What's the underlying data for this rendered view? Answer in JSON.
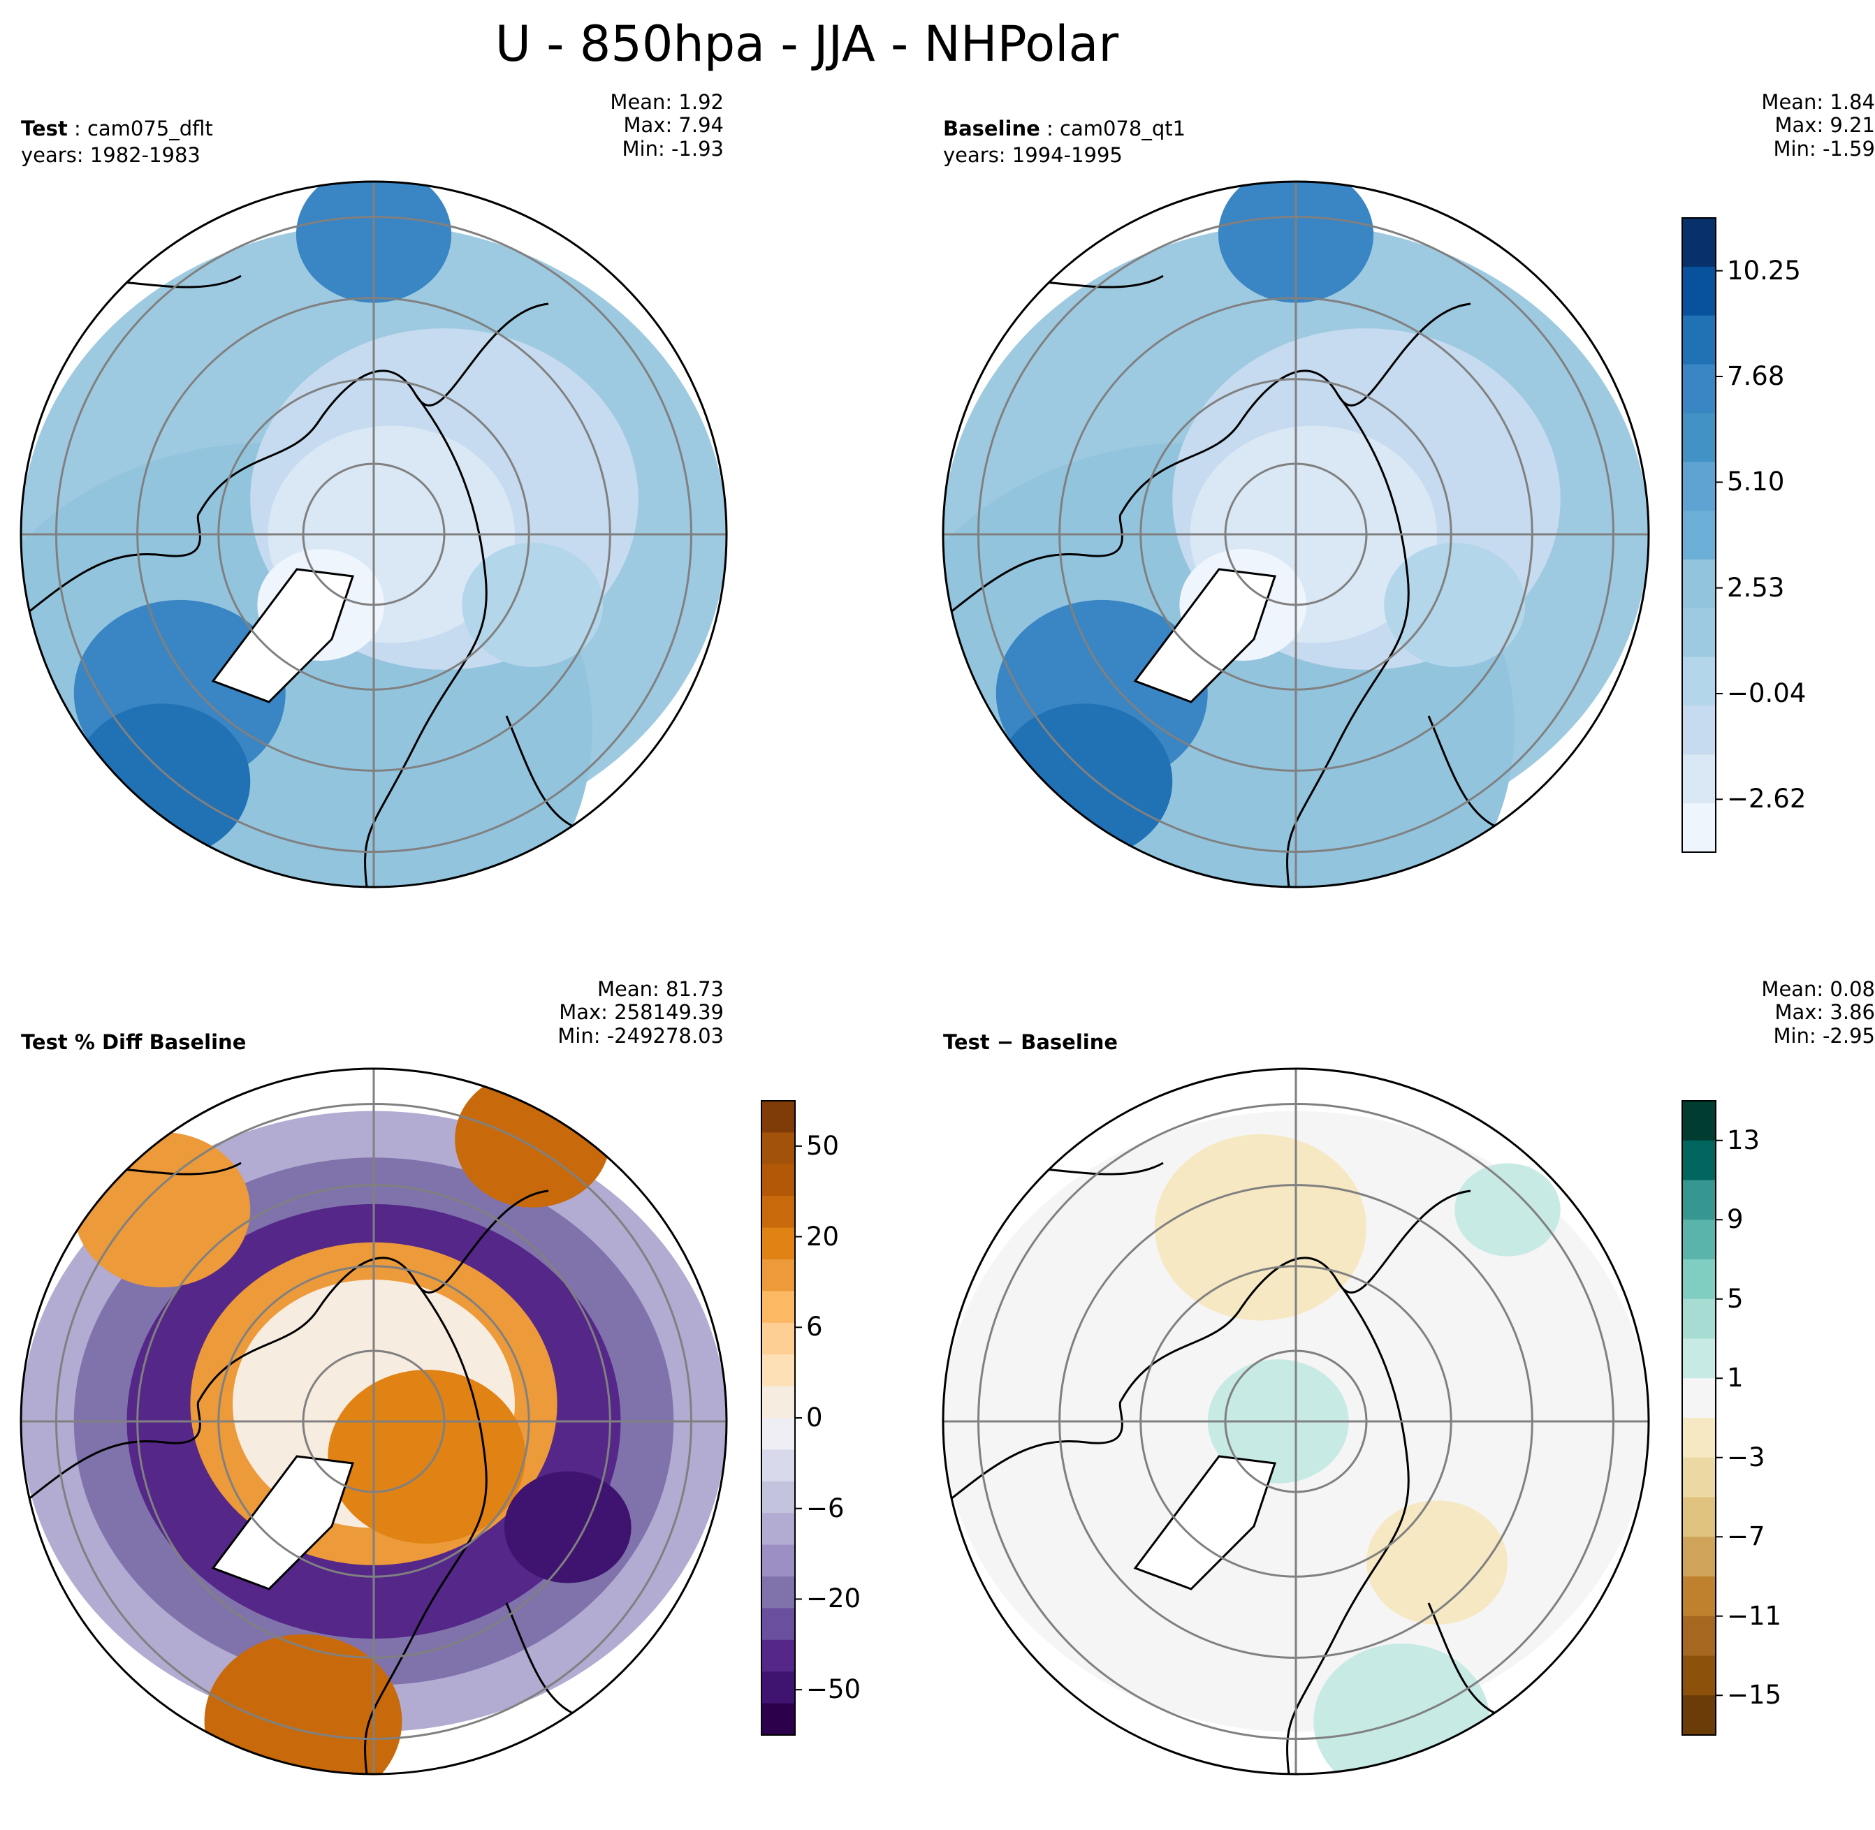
{
  "title": "U - 850hpa - JJA - NHPolar",
  "panels": [
    {
      "id": "test",
      "label_bold": "Test",
      "label_rest": " : cam075_dflt",
      "years": "years: 1982-1983",
      "stats": [
        "Mean:  1.92",
        "Max:  7.94",
        "Min: -1.93"
      ],
      "palette": "blues"
    },
    {
      "id": "baseline",
      "label_bold": "Baseline",
      "label_rest": " : cam078_qt1",
      "years": "years: 1994-1995",
      "stats": [
        "Mean:  1.84",
        "Max:  9.21",
        "Min: -1.59"
      ],
      "palette": "blues"
    },
    {
      "id": "pctdiff",
      "label_bold": "Test % Diff Baseline",
      "label_rest": "",
      "years": "",
      "stats": [
        "Mean: 81.73",
        "Max: 258149.39",
        "Min: -249278.03"
      ],
      "palette": "puor"
    },
    {
      "id": "diff",
      "label_bold": "Test − Baseline",
      "label_rest": "",
      "years": "",
      "stats": [
        "Mean:  0.08",
        "Max:  3.86",
        "Min: -2.95"
      ],
      "palette": "brbg"
    }
  ],
  "colorbars": {
    "blues": {
      "ticks": [
        "10.25",
        "7.68",
        "5.10",
        "2.53",
        "−0.04",
        "−2.62"
      ],
      "colors": [
        "#08306b",
        "#08519c",
        "#2171b5",
        "#3a85c3",
        "#4292c6",
        "#5fa3d2",
        "#6baed6",
        "#93c4de",
        "#9ecae1",
        "#b4d6ea",
        "#c6dbef",
        "#dae8f5",
        "#eef5fc"
      ]
    },
    "puor": {
      "ticks": [
        "50",
        "20",
        "6",
        "0",
        "−6",
        "−20",
        "−50"
      ],
      "colors": [
        "#7f3b08",
        "#a2520a",
        "#b35806",
        "#c86a0b",
        "#e08214",
        "#ec9a3a",
        "#fdb863",
        "#fdcf94",
        "#fee0b6",
        "#f7ece0",
        "#efeef4",
        "#d8daeb",
        "#c4c3de",
        "#b2abd2",
        "#9b8fc3",
        "#8073ac",
        "#6a4f9e",
        "#542788",
        "#3f1470",
        "#2d004b"
      ]
    },
    "brbg": {
      "ticks": [
        "13",
        "9",
        "5",
        "1",
        "−3",
        "−7",
        "−11",
        "−15"
      ],
      "colors": [
        "#003c30",
        "#01665e",
        "#35978f",
        "#5ab4ac",
        "#80cdc1",
        "#a6dcd2",
        "#c7eae5",
        "#f5f5f5",
        "#f6e8c3",
        "#ecd8a3",
        "#dfc27d",
        "#cfa359",
        "#bf812d",
        "#a66820",
        "#8c510a",
        "#6b3c07"
      ]
    }
  }
}
